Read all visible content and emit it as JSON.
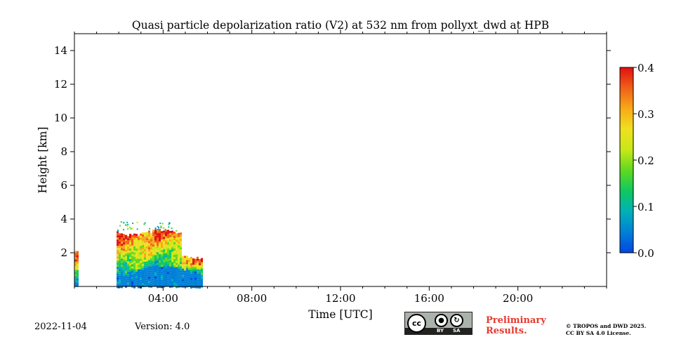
{
  "chart_data": {
    "type": "heatmap",
    "title": "Quasi particle depolarization ratio (V2) at 532 nm from pollyxt_dwd at HPB",
    "xlabel": "Time [UTC]",
    "ylabel": "Height [km]",
    "xlim_hours": [
      0,
      24
    ],
    "ylim_km": [
      0,
      15
    ],
    "x_ticks": [
      {
        "hour": 4,
        "label": "04:00"
      },
      {
        "hour": 8,
        "label": "08:00"
      },
      {
        "hour": 12,
        "label": "12:00"
      },
      {
        "hour": 16,
        "label": "16:00"
      },
      {
        "hour": 20,
        "label": "20:00"
      }
    ],
    "x_minor_ticks_hours": [
      0,
      1,
      2,
      3,
      5,
      6,
      7,
      9,
      10,
      11,
      13,
      14,
      15,
      17,
      18,
      19,
      21,
      22,
      23,
      24
    ],
    "y_ticks": [
      {
        "value": 2,
        "label": "2"
      },
      {
        "value": 4,
        "label": "4"
      },
      {
        "value": 6,
        "label": "6"
      },
      {
        "value": 8,
        "label": "8"
      },
      {
        "value": 10,
        "label": "10"
      },
      {
        "value": 12,
        "label": "12"
      },
      {
        "value": 14,
        "label": "14"
      }
    ],
    "colorbar": {
      "min": 0.0,
      "max": 0.4,
      "ticks": [
        {
          "value": 0.0,
          "label": "0.0"
        },
        {
          "value": 0.1,
          "label": "0.1"
        },
        {
          "value": 0.2,
          "label": "0.2"
        },
        {
          "value": 0.3,
          "label": "0.3"
        },
        {
          "value": 0.4,
          "label": "0.4"
        }
      ],
      "colormap": [
        "#0047e0",
        "#0080d8",
        "#00b0b8",
        "#10c860",
        "#60d820",
        "#c8e818",
        "#f0e020",
        "#f8a818",
        "#f06018",
        "#e01010"
      ]
    },
    "data_segments": [
      {
        "start_hour": 0.0,
        "end_hour": 0.1,
        "base_km": 0.0,
        "top_km": 2.1
      },
      {
        "start_hour": 1.9,
        "end_hour": 5.75,
        "base_km": 0.0,
        "top_km": 3.3
      }
    ],
    "legend": "colorbar-right"
  },
  "footer": {
    "date": "2022-11-04",
    "version": "Version: 4.0",
    "preliminary_line1": "Preliminary",
    "preliminary_line2": "Results.",
    "copyright_line1": "© TROPOS and DWD 2025.",
    "copyright_line2": "CC BY SA 4.0 License.",
    "cc_main": "cc",
    "cc_by": "BY",
    "cc_sa": "SA",
    "cc_by_icon": "person-icon",
    "cc_sa_icon": "share-alike-icon",
    "prelim_color": "#e8372c"
  }
}
